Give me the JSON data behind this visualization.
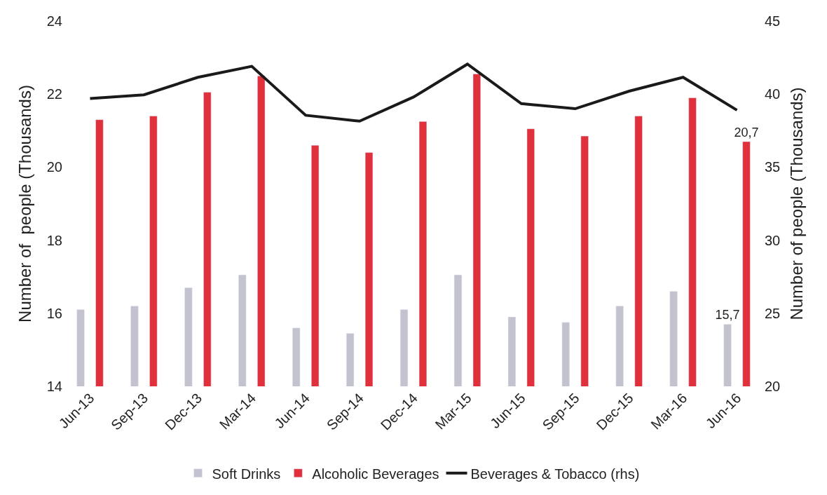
{
  "chart_data": {
    "type": "bar",
    "ylabel": "Number of  people (Thousands)",
    "y2label": "Number of people (Thousands)",
    "categories": [
      "Jun-13",
      "Sep-13",
      "Dec-13",
      "Mar-14",
      "Jun-14",
      "Sep-14",
      "Dec-14",
      "Mar-15",
      "Jun-15",
      "Sep-15",
      "Dec-15",
      "Mar-16",
      "Jun-16"
    ],
    "series": [
      {
        "name": "Soft Drinks",
        "color": "#c3c3cf",
        "values": [
          16.1,
          16.2,
          16.7,
          17.05,
          15.6,
          15.45,
          16.1,
          17.05,
          15.9,
          15.75,
          16.2,
          16.6,
          15.7
        ],
        "value_labels": [
          null,
          null,
          null,
          null,
          null,
          null,
          null,
          null,
          null,
          null,
          null,
          null,
          "15,7"
        ]
      },
      {
        "name": "Alcoholic Beverages",
        "color": "#e0303c",
        "values": [
          21.3,
          21.4,
          22.05,
          22.5,
          20.6,
          20.4,
          21.25,
          22.55,
          21.05,
          20.85,
          21.4,
          21.9,
          20.7
        ],
        "value_labels": [
          null,
          null,
          null,
          null,
          null,
          null,
          null,
          null,
          null,
          null,
          null,
          null,
          "20,7"
        ]
      },
      {
        "name": "Beverages & Tobacco (rhs)",
        "type": "line",
        "axis": "y2",
        "color": "#1a1a1a",
        "values": [
          39.7,
          39.95,
          41.15,
          41.9,
          38.55,
          38.15,
          39.8,
          42.05,
          39.35,
          39.0,
          40.2,
          41.15,
          38.9
        ]
      }
    ],
    "ylim": [
      14,
      24
    ],
    "yticks": [
      14,
      16,
      18,
      20,
      22,
      24
    ],
    "y2lim": [
      20,
      45
    ],
    "y2ticks": [
      20,
      25,
      30,
      35,
      40,
      45
    ],
    "legend": "bottom",
    "marker": "none"
  }
}
